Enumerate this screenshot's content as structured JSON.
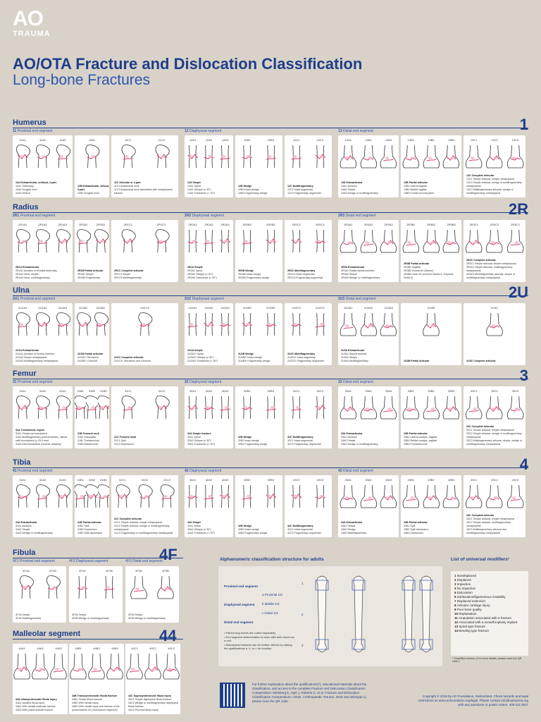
{
  "header": {
    "logo_ao": "AO",
    "logo_trauma": "TRAUMA",
    "title": "AO/OTA Fracture and Dislocation Classification",
    "subtitle": "Long-bone Fractures"
  },
  "sections": [
    {
      "key": "humerus",
      "name": "Humerus",
      "number": "1",
      "segments": [
        {
          "code": "11",
          "label": "Proximal end segment"
        },
        {
          "code": "12",
          "label": "Diaphyseal segment"
        },
        {
          "code": "13",
          "label": "Distal end segment"
        }
      ],
      "groups": [
        {
          "codes": [
            "11A1",
            "11A2",
            "11A3"
          ],
          "desc": [
            "11A Extraarticular, unifocal, 2-part",
            "11A1 Tuberosity",
            "11A2 Surgical neck",
            "11A3 Vertical"
          ]
        },
        {
          "codes": [
            "11B1"
          ],
          "desc": [
            "11B Extraarticular, bifocal, 3-part",
            "11B1 Surgical neck"
          ]
        },
        {
          "codes": [
            "11C1",
            "11C3"
          ],
          "desc": [
            "11C Articular or 4-part",
            "11C1 Anatomical neck",
            "11C3 Anatomical neck associated with metaphyseal fracture"
          ]
        },
        {
          "codes": [
            "12A1",
            "12A2",
            "12A3"
          ],
          "desc": [
            "12A Simple",
            "12A1 Spiral",
            "12A2 Oblique (≥ 30°)",
            "12A3 Transverse (< 30°)"
          ]
        },
        {
          "codes": [
            "12B2",
            "12B3"
          ],
          "desc": [
            "12B Wedge",
            "12B2 Intact wedge",
            "12B3 Fragmentary wedge"
          ]
        },
        {
          "codes": [
            "12C2",
            "12C3"
          ],
          "desc": [
            "12C Multifragmentary",
            "12C2 Intact segmental",
            "12C3 Fragmentary segmental"
          ]
        },
        {
          "codes": [
            "13A1",
            "13A2",
            "13A3"
          ],
          "desc": [
            "13A Extraarticular",
            "13A1 Avulsion",
            "13A2 Simple",
            "13A3 Wedge or multifragmentary"
          ]
        },
        {
          "codes": [
            "13B1",
            "13B2",
            "13B3"
          ],
          "desc": [
            "13B Partial articular",
            "13B1 Lateral sagittal",
            "13B2 Medial sagittal",
            "13B3 Frontal coronal plane"
          ]
        },
        {
          "codes": [
            "13C1",
            "13C2",
            "13C3"
          ],
          "desc": [
            "13C Complete articular",
            "13C1 Simple articular, simple metaphyseal",
            "13C2 Simple articular, wedge or multifragmentary metaphyseal",
            "13C3 Multifragmentary articular, wedge or multifragmentary metaphyseal"
          ]
        }
      ]
    },
    {
      "key": "radius",
      "name": "Radius",
      "number": "2R",
      "segments": [
        {
          "code": "2R1",
          "label": "Proximal end segment"
        },
        {
          "code": "2R2",
          "label": "Diaphyseal segment"
        },
        {
          "code": "2R3",
          "label": "Distal end segment"
        }
      ],
      "groups": [
        {
          "codes": [
            "2R1A1",
            "2R1A2",
            "2R1A3"
          ],
          "desc": [
            "2R1A Extraarticular",
            "2R1A1 Avulsion of bicipital tuberosity",
            "2R1A2 Neck, simple",
            "2R1A3 Neck, multifragmentary"
          ]
        },
        {
          "codes": [
            "2R1B1",
            "2R1B3"
          ],
          "desc": [
            "2R1B Partial articular",
            "2R1B1 Simple",
            "2R1B3 Fragmentary"
          ]
        },
        {
          "codes": [
            "2R1C1",
            "2R1C3"
          ],
          "desc": [
            "2R1C Complete articular",
            "2R1C1 Simple",
            "2R1C3 Multifragmentary"
          ]
        },
        {
          "codes": [
            "2R2A1",
            "2R2A2",
            "2R2A3"
          ],
          "desc": [
            "2R2A Simple",
            "2R2A1 Spiral",
            "2R2A2 Oblique (≥ 30°)",
            "2R2A3 Transverse (< 30°)"
          ]
        },
        {
          "codes": [
            "2R2B2",
            "2R2B3"
          ],
          "desc": [
            "2R2B Wedge",
            "2R2B2 Intact wedge",
            "2R2B3 Fragmentary wedge"
          ]
        },
        {
          "codes": [
            "2R2C2",
            "2R2C3"
          ],
          "desc": [
            "2R2C Multifragmentary",
            "2R2C2 Intact segmental",
            "2R2C3 Fragmentary segmental"
          ]
        },
        {
          "codes": [
            "2R3A1",
            "2R3A2",
            "2R3A3"
          ],
          "desc": [
            "2R3A Extraarticular",
            "2R3A1 Radial styloid avulsion",
            "2R3A2 Simple",
            "2R3A3 Wedge or multifragmentary"
          ]
        },
        {
          "codes": [
            "2R3B1",
            "2R3B2",
            "2R3B3"
          ],
          "desc": [
            "2R3B Partial articular",
            "2R3B1 Sagittal",
            "2R3B2 Dorsal rim (Barton)",
            "2R3B3 Volar rim (reverse Barton's, Goyrand-Smith II)"
          ]
        },
        {
          "codes": [
            "2R3C1",
            "2R3C2",
            "2R3C3"
          ],
          "desc": [
            "2R3C Complete articular",
            "2R3C1 Simple articular, simple metaphyseal",
            "2R3C2 Simple articular, multifragmentary metaphyseal",
            "2R3C3 Multifragmentary articular, simple or multifragmentary metaphyseal"
          ]
        }
      ]
    },
    {
      "key": "ulna",
      "name": "Ulna",
      "number": "2U",
      "segments": [
        {
          "code": "2U1",
          "label": "Proximal end segment"
        },
        {
          "code": "2U2",
          "label": "Diaphyseal segment"
        },
        {
          "code": "2U3",
          "label": "Distal end segment"
        }
      ],
      "groups": [
        {
          "codes": [
            "2U1A1",
            "2U1A2",
            "2U1A3"
          ],
          "desc": [
            "2U1A Extraarticular",
            "2U1A1 Avulsion of triceps insertion",
            "2U1A2 Simple metaphyseal",
            "2U1A3 Multifragmentary metaphyseal"
          ]
        },
        {
          "codes": [
            "2U1B1",
            "2U1B2"
          ],
          "desc": [
            "2U1B Partial articular",
            "2U1B1* Olecranon",
            "2U1B2* Coronoid"
          ]
        },
        {
          "codes": [
            "2U1C3"
          ],
          "desc": [
            "2U1C Complete articular",
            "2U1C3* Olecranon and coronoid"
          ]
        },
        {
          "codes": [
            "2U2A1",
            "2U2A2",
            "2U2A3"
          ],
          "desc": [
            "2U2A Simple",
            "2U2A1* Spiral",
            "2U2A2* Oblique (≥ 30°)",
            "2U2A3* Transverse (< 30°)"
          ]
        },
        {
          "codes": [
            "2U2B2",
            "2U2B3"
          ],
          "desc": [
            "2U2B Wedge",
            "2U2B2* Intact wedge",
            "2U2B3* Fragmentary wedge"
          ]
        },
        {
          "codes": [
            "2U2C2",
            "2U2C3"
          ],
          "desc": [
            "2U2C Multifragmentary",
            "2U2C2* Intact segmental",
            "2U2C3* Fragmentary segmental"
          ]
        },
        {
          "codes": [
            "2U3A1",
            "2U3A2",
            "2U3A3"
          ],
          "desc": [
            "2U3A Extraarticular",
            "2U3A1 Styloid process",
            "2U3A2 Simple",
            "2U3A3 Multifragmentary"
          ]
        },
        {
          "codes": [
            "2U3B"
          ],
          "desc": [
            "2U3B Partial articular"
          ]
        },
        {
          "codes": [
            "2U3C"
          ],
          "desc": [
            "2U3C Complete articular"
          ]
        }
      ]
    },
    {
      "key": "femur",
      "name": "Femur",
      "number": "3",
      "segments": [
        {
          "code": "31",
          "label": "Proximal end segment"
        },
        {
          "code": "32",
          "label": "Diaphyseal segment"
        },
        {
          "code": "33",
          "label": "Distal end segment"
        }
      ],
      "groups": [
        {
          "codes": [
            "31A1",
            "31A2",
            "31A3"
          ],
          "desc": [
            "31A Trochanteric region",
            "31A1 Simple pertrochanteric",
            "31A2 Multifragmentary pertrochanteric, lateral wall incompetent (≤ 20.5 mm)",
            "31A3 Intertrochanteric (reverse obliquity)"
          ]
        },
        {
          "codes": [
            "31B1",
            "31B2",
            "31B3"
          ],
          "desc": [
            "31B Femoral neck",
            "31B1 Subcapital",
            "31B2 Transcervical",
            "31B3 Basicervical"
          ]
        },
        {
          "codes": [
            "31C1",
            "31C2"
          ],
          "desc": [
            "31C Femoral head",
            "31C1 Split",
            "31C2 Depression"
          ]
        },
        {
          "codes": [
            "32A1",
            "32A2",
            "32A3"
          ],
          "desc": [
            "32A Simple fracture",
            "32A1 Spiral",
            "32A2 Oblique (≥ 30°)",
            "32A3 Transverse (< 30°)"
          ]
        },
        {
          "codes": [
            "32B2",
            "32B3"
          ],
          "desc": [
            "32B Wedge",
            "32B2 Intact wedge",
            "32B3 Fragmentary wedge"
          ]
        },
        {
          "codes": [
            "32C2",
            "32C3"
          ],
          "desc": [
            "32C Multifragmentary",
            "32C2 Intact segmental",
            "32C3 Fragmentary segmental"
          ]
        },
        {
          "codes": [
            "33A1",
            "33A2",
            "33A3"
          ],
          "desc": [
            "33A Extraarticular",
            "33A1 Avulsion",
            "33A2 Simple",
            "33A3 Wedge or multifragmentary"
          ]
        },
        {
          "codes": [
            "33B1",
            "33B2",
            "33B3"
          ],
          "desc": [
            "33B Partial articular",
            "33B1 Lateral condyle, sagittal",
            "33B2 Medial condyle, sagittal",
            "33B3 Frontal/coronal"
          ]
        },
        {
          "codes": [
            "33C1",
            "33C2",
            "33C3"
          ],
          "desc": [
            "33C Complete articular",
            "33C1 Simple articular, simple metaphyseal",
            "33C2 Simple articular, wedge or multifragmentary metaphyseal",
            "33C3 Multifragmentary articular, simple, wedge or multifragmentary metaphyseal"
          ]
        }
      ]
    },
    {
      "key": "tibia",
      "name": "Tibia",
      "number": "4",
      "segments": [
        {
          "code": "41",
          "label": "Proximal end segment"
        },
        {
          "code": "42",
          "label": "Diaphyseal segment"
        },
        {
          "code": "43",
          "label": "Distal end segment"
        }
      ],
      "groups": [
        {
          "codes": [
            "41A1",
            "41A2",
            "41A3"
          ],
          "desc": [
            "41A Extraarticular",
            "41A1 Avulsion",
            "41A2 Simple",
            "41A3 Wedge or multifragmentary"
          ]
        },
        {
          "codes": [
            "41B1",
            "41B2",
            "41B3"
          ],
          "desc": [
            "41B Partial articular",
            "41B1 Split",
            "41B2 Depression",
            "41B3 Split-depression"
          ]
        },
        {
          "codes": [
            "41C1",
            "41C2",
            "41C3"
          ],
          "desc": [
            "41C Complete articular",
            "41C1 Simple articular, simple metaphyseal",
            "41C2 Simple articular, wedge or multifragmentary metaphyseal",
            "41C3 Fragmentary or multifragmentary metaphyseal"
          ]
        },
        {
          "codes": [
            "42A1",
            "42A2",
            "42A3"
          ],
          "desc": [
            "42A Simple",
            "42A1 Spiral",
            "42A2 Oblique (≥ 30°)",
            "42A3 Transverse (< 30°)"
          ]
        },
        {
          "codes": [
            "42B2",
            "42B3"
          ],
          "desc": [
            "42B Wedge",
            "42B2 Intact wedge",
            "42B3 Fragmentary wedge"
          ]
        },
        {
          "codes": [
            "42C2",
            "42C3"
          ],
          "desc": [
            "42C Multifragmentary",
            "42C2 Intact segmental",
            "42C3 Fragmentary segmental"
          ]
        },
        {
          "codes": [
            "43A1",
            "43A2",
            "43A3"
          ],
          "desc": [
            "43A Extraarticular",
            "43A1 Simple",
            "43A2 Wedge",
            "43A3 Multifragmentary"
          ]
        },
        {
          "codes": [
            "43B1",
            "43B2",
            "43B3"
          ],
          "desc": [
            "43B Partial articular",
            "43B1 Split",
            "43B2 Split-depression",
            "43B3 Depression"
          ]
        },
        {
          "codes": [
            "43C1",
            "43C2",
            "43C3"
          ],
          "desc": [
            "43C Complete articular",
            "43C1 Simple articular, simple metaphyseal",
            "43C2 Simple articular, multifragmentary metaphyseal",
            "43C3 Multifragmentary articular and multifragmentary metaphyseal"
          ]
        }
      ]
    }
  ],
  "fibula": {
    "name": "Fibula",
    "number": "4F",
    "segments": [
      {
        "code": "4F1",
        "label": "Proximal end segment"
      },
      {
        "code": "4F2",
        "label": "Diaphyseal segment"
      },
      {
        "code": "4F3",
        "label": "Distal end segment"
      }
    ],
    "groups": [
      {
        "codes": [
          "4F1A",
          "4F1B"
        ],
        "desc": [
          "4F1A Simple",
          "4F1B Multifragmentary"
        ]
      },
      {
        "codes": [
          "4F2A",
          "4F2B"
        ],
        "desc": [
          "4F2A Simple",
          "4F2B Wedge or multifragmentary"
        ]
      },
      {
        "codes": [
          "4F3A",
          "4F3B"
        ],
        "desc": [
          "4F3A Simple",
          "4F3B Wedge or multifragmentary"
        ]
      }
    ]
  },
  "malleolar": {
    "name": "Malleolar segment",
    "number": "44",
    "groups": [
      {
        "codes": [
          "44A1",
          "44A2",
          "44A3"
        ],
        "desc": [
          "44A Infrasyndesmotic fibula injury",
          "44A1 Isolated fibula injury",
          "44A2 With medial malleolar fracture",
          "44A3 With posteromedial fracture"
        ]
      },
      {
        "codes": [
          "44B1",
          "44B2",
          "44B3"
        ],
        "desc": [
          "44B Transsyndesmotic fibula fracture",
          "44B1 Simple fibula fracture",
          "44B2 With medial injury",
          "44B3 With medial injury and fracture of the posterolateral rim (Volkmann's fragment)"
        ]
      },
      {
        "codes": [
          "44C1",
          "44C2",
          "44C3"
        ],
        "desc": [
          "44C Suprasyndesmotic fibula injury",
          "44C1 Simple diaphyseal fibula fracture",
          "44C2 Wedge or multifragmentary diaphyseal fibula fracture",
          "44C3 Proximal fibula injury"
        ]
      }
    ]
  },
  "structure": {
    "title": "Alphanumeric classification structure for adults",
    "proximal": "Proximal end segment",
    "diaphyseal": "Diaphyseal segment",
    "distal": "Distal end segment",
    "thirds": [
      "a Proximal 1/3",
      "b Middle 1/3",
      "c Distal 1/3"
    ],
    "labels_left": [
      "1",
      "2",
      "3"
    ],
    "notes": [
      "• Paired long bones are coded separately",
      "• End segment determination is done with both bones as a unit",
      "• Diaphyseal fractures can be further refined by adding the qualifications a, b, or c for location."
    ]
  },
  "modifiers": {
    "title": "List of universal modifiers¹",
    "items": [
      "1 Nondisplaced",
      "2 Displaced",
      "3 Impaction",
      "4 No impaction",
      "5 Dislocation",
      "6 Subluxation/ligamentous instability",
      "7 Displaced extension",
      "8 Articular cartilage injury",
      "9 Poor bone quality",
      "10 Replantation",
      "11 Amputation associated with a fracture",
      "12 Associated with a nonarthroplasty implant",
      "13 Spiral type fracture",
      "14 Bending type fracture"
    ],
    "footnote": "¹ Simplified version. (For more details, please scan the QR code.)"
  },
  "footer": {
    "text": "For further explanation about the qualifications(*), educational materials about the classification, and access to the complete Fracture and Dislocation Classification Compendium: Meinberg E, Agel J, Roberts C, et al. Fracture and Dislocation Classification Compendium—2018. J Orthopaedic Trauma. 2018 Jan;32(Suppl 1), please scan the QR code.",
    "copyright": "Copyright © 2018 by AO Foundation, Switzerland. Check hazards and legal restrictions on www.aofoundation.org/legal. Please contact info@aotrauma.org with any questions or poster orders. 400.011.0917"
  }
}
